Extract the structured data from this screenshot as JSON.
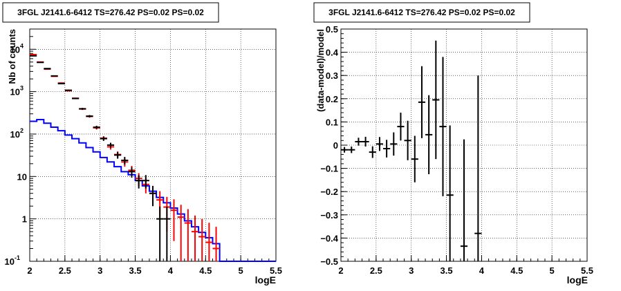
{
  "colors": {
    "data": "#000000",
    "model": "#ff0000",
    "background": "#0000ff"
  },
  "chart_data": [
    {
      "type": "line",
      "title": "3FGL J2141.6-6412 TS=276.42 PS=0.02 PS=0.02",
      "xlabel": "logE",
      "ylabel": "Nb of counts",
      "xlim": [
        2,
        5.5
      ],
      "ylim": [
        0.1,
        30000
      ],
      "yscale": "log",
      "grid": true,
      "x_ticks": [
        "2",
        "2.5",
        "3",
        "3.5",
        "4",
        "4.5",
        "5",
        "5.5"
      ],
      "y_ticks": [
        "10^-1",
        "1",
        "10",
        "10^2",
        "10^3",
        "10^4"
      ],
      "bin_width": 0.1,
      "series": [
        {
          "role": "background",
          "color": "#0000ff",
          "style": "step",
          "x": [
            2.0,
            2.1,
            2.2,
            2.3,
            2.4,
            2.5,
            2.6,
            2.7,
            2.8,
            2.9,
            3.0,
            3.1,
            3.2,
            3.3,
            3.4,
            3.5,
            3.6,
            3.7,
            3.8,
            3.9,
            4.0,
            4.1,
            4.2,
            4.3,
            4.4,
            4.5,
            4.6,
            4.7,
            4.8,
            4.9,
            5.0,
            5.1,
            5.2,
            5.3,
            5.4
          ],
          "y": [
            200,
            220,
            180,
            145,
            120,
            95,
            78,
            62,
            48,
            38,
            28,
            22,
            17,
            13,
            11,
            8,
            6,
            4.5,
            3.2,
            2.4,
            1.8,
            1.3,
            0.9,
            0.65,
            0.48,
            0.36,
            0.26,
            0.1,
            0.1,
            0.1,
            0.1,
            0.1,
            0.1,
            0.1,
            0.1
          ]
        },
        {
          "role": "model",
          "color": "#ff0000",
          "style": "errorbar",
          "x": [
            2.05,
            2.15,
            2.25,
            2.35,
            2.45,
            2.55,
            2.65,
            2.75,
            2.85,
            2.95,
            3.05,
            3.15,
            3.25,
            3.35,
            3.45,
            3.55,
            3.65,
            3.75,
            3.85,
            3.95,
            4.05,
            4.15,
            4.25,
            4.35,
            4.45,
            4.55,
            4.65
          ],
          "y": [
            7500,
            5000,
            3400,
            2300,
            1600,
            1050,
            700,
            390,
            260,
            140,
            80,
            50,
            33,
            22,
            14,
            9,
            6.5,
            4,
            2.8,
            1.9,
            1.6,
            1.1,
            0.8,
            0.5,
            0.38,
            0.28,
            0.2
          ],
          "yerr": [
            80,
            70,
            60,
            48,
            40,
            32,
            26,
            20,
            16,
            12,
            9,
            7,
            6,
            5,
            3.8,
            3,
            2.5,
            2,
            1.7,
            1.4,
            1.3,
            1.05,
            0.9,
            0.7,
            0.62,
            0.53,
            0.45
          ]
        },
        {
          "role": "data",
          "color": "#000000",
          "style": "errorbar",
          "x": [
            2.05,
            2.15,
            2.25,
            2.35,
            2.45,
            2.55,
            2.65,
            2.75,
            2.85,
            2.95,
            3.05,
            3.15,
            3.25,
            3.35,
            3.45,
            3.55,
            3.65,
            3.75,
            3.85,
            3.95
          ],
          "y": [
            7000,
            4900,
            3500,
            2350,
            1550,
            1080,
            690,
            395,
            265,
            145,
            78,
            55,
            32,
            24,
            13,
            8,
            8,
            4,
            1,
            1
          ],
          "yerr": [
            84,
            70,
            59,
            48,
            39,
            33,
            26,
            20,
            16,
            12,
            9,
            7.4,
            5.7,
            4.9,
            3.6,
            2.8,
            2.8,
            2,
            0.95,
            0.95
          ]
        }
      ]
    },
    {
      "type": "scatter",
      "title": "3FGL J2141.6-6412 TS=276.42 PS=0.02 PS=0.02",
      "xlabel": "logE",
      "ylabel": "(data-model)/model",
      "xlim": [
        2,
        5.5
      ],
      "ylim": [
        -0.5,
        0.5
      ],
      "grid": true,
      "x_ticks": [
        "2",
        "2.5",
        "3",
        "3.5",
        "4",
        "4.5",
        "5",
        "5.5"
      ],
      "y_ticks": [
        "-0.5",
        "-0.4",
        "-0.3",
        "-0.2",
        "-0.1",
        "0",
        "0.1",
        "0.2",
        "0.3",
        "0.4",
        "0.5"
      ],
      "bin_width": 0.1,
      "series": [
        {
          "role": "residual",
          "color": "#000000",
          "style": "errorbar",
          "x": [
            2.05,
            2.15,
            2.25,
            2.35,
            2.45,
            2.55,
            2.65,
            2.75,
            2.85,
            2.95,
            3.05,
            3.15,
            3.25,
            3.35,
            3.45,
            3.55,
            3.75,
            3.95
          ],
          "y": [
            -0.02,
            -0.02,
            0.015,
            0.015,
            -0.03,
            0.005,
            -0.015,
            0.005,
            0.08,
            0.02,
            -0.06,
            0.185,
            0.045,
            0.195,
            0.08,
            -0.215,
            -0.435,
            -0.38
          ],
          "yerr": [
            0.012,
            0.014,
            0.017,
            0.021,
            0.025,
            0.03,
            0.038,
            0.05,
            0.06,
            0.085,
            0.1,
            0.155,
            0.17,
            0.255,
            0.3,
            0.3,
            0.46,
            0.68
          ]
        }
      ]
    }
  ]
}
